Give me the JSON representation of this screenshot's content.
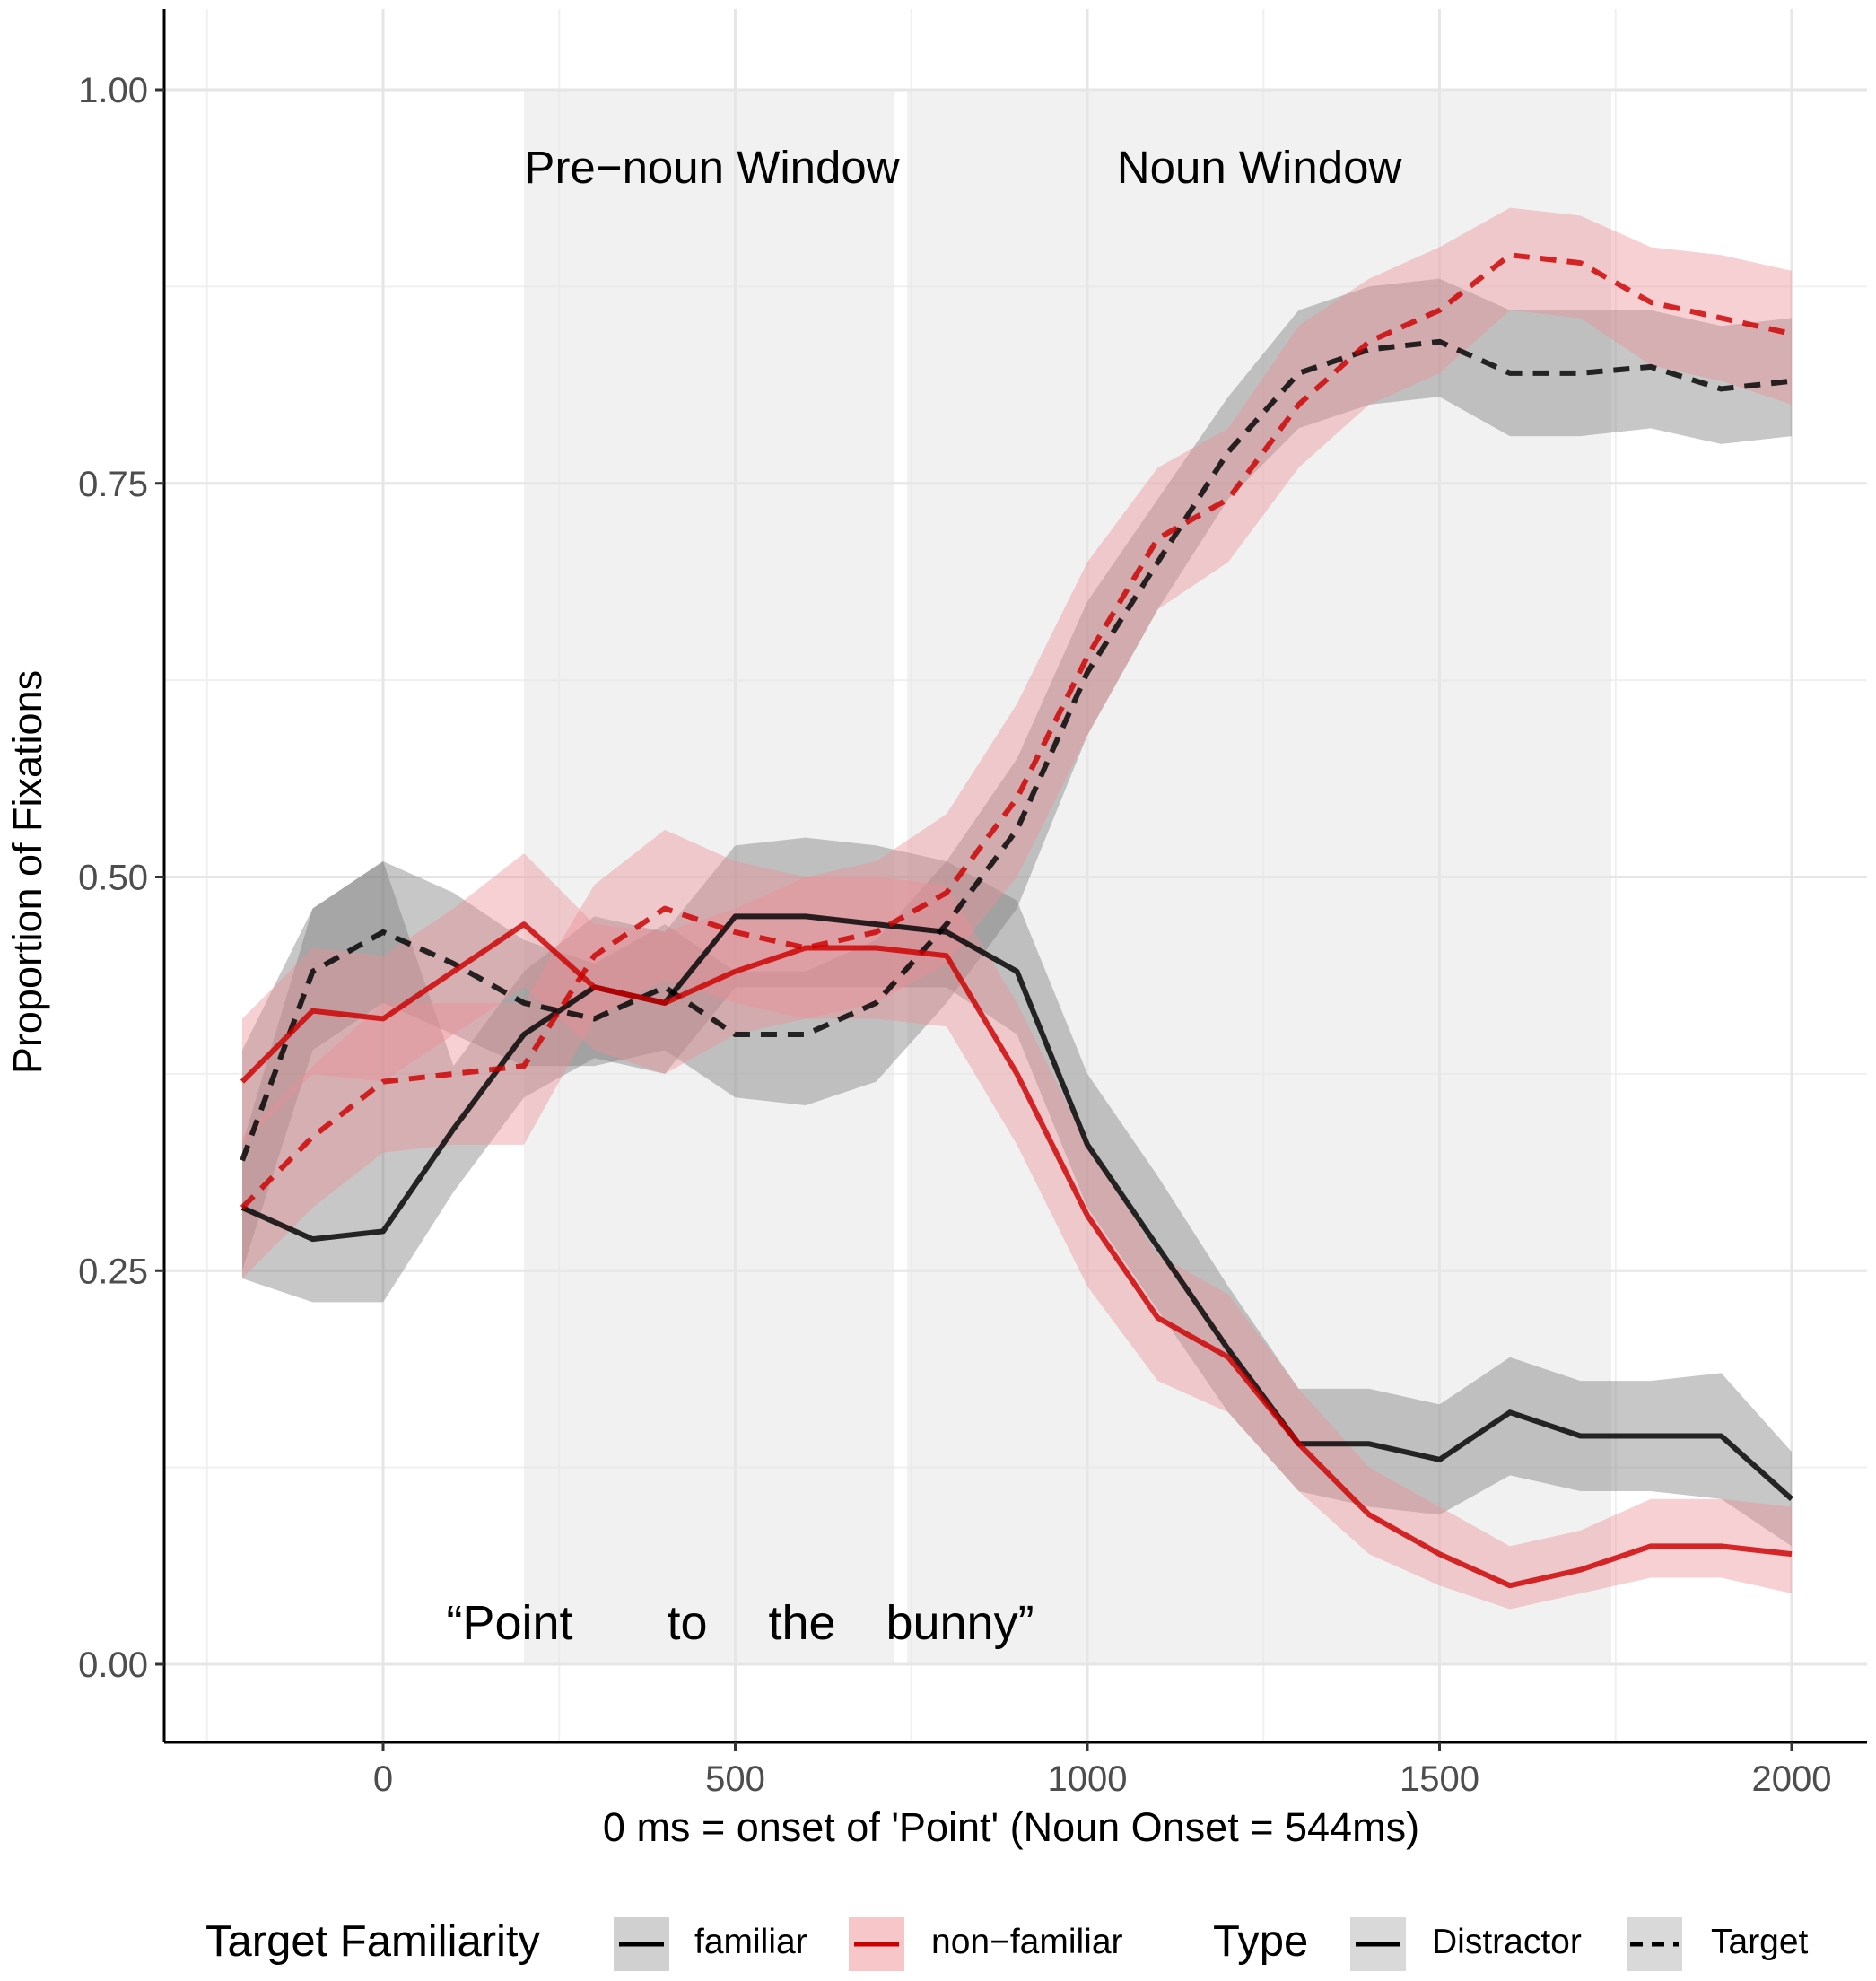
{
  "chart_data": {
    "type": "line",
    "title": "",
    "xlabel": "0 ms = onset of 'Point' (Noun Onset = 544ms)",
    "ylabel": "Proportion of Fixations",
    "xlim": [
      -300,
      2110
    ],
    "ylim": [
      -0.05,
      1.05
    ],
    "x_ticks": [
      0,
      500,
      1000,
      1500,
      2000
    ],
    "x_tick_labels": [
      "0",
      "500",
      "1000",
      "1500",
      "2000"
    ],
    "y_ticks": [
      0,
      0.25,
      0.5,
      0.75,
      1.0
    ],
    "y_tick_labels": [
      "0.00",
      "0.25",
      "0.50",
      "0.75",
      "1.00"
    ],
    "grid": true,
    "windows": [
      {
        "label": "Pre−noun Window",
        "start": 200,
        "end": 744
      },
      {
        "label": "Noun Window",
        "start": 744,
        "end": 1744
      }
    ],
    "utterance": {
      "words": [
        "“Point",
        "to",
        "the",
        "bunny”"
      ]
    },
    "x": [
      -200,
      -100,
      0,
      100,
      200,
      300,
      400,
      500,
      600,
      700,
      800,
      900,
      1000,
      1100,
      1200,
      1300,
      1400,
      1500,
      1600,
      1700,
      1800,
      1900,
      2000
    ],
    "series": [
      {
        "name": "familiar – Target",
        "familiarity": "familiar",
        "type": "Target",
        "color": "#000000",
        "dash": "dashed",
        "values": [
          0.32,
          0.44,
          0.465,
          0.445,
          0.42,
          0.41,
          0.43,
          0.4,
          0.4,
          0.42,
          0.47,
          0.53,
          0.63,
          0.7,
          0.77,
          0.82,
          0.835,
          0.84,
          0.82,
          0.82,
          0.824,
          0.81,
          0.815
        ],
        "lower": [
          0.25,
          0.39,
          0.42,
          0.4,
          0.38,
          0.38,
          0.39,
          0.36,
          0.355,
          0.37,
          0.42,
          0.48,
          0.59,
          0.67,
          0.74,
          0.785,
          0.8,
          0.805,
          0.78,
          0.78,
          0.785,
          0.775,
          0.78
        ],
        "upper": [
          0.39,
          0.48,
          0.51,
          0.49,
          0.46,
          0.445,
          0.47,
          0.44,
          0.44,
          0.46,
          0.51,
          0.575,
          0.675,
          0.74,
          0.805,
          0.86,
          0.875,
          0.88,
          0.86,
          0.86,
          0.86,
          0.85,
          0.855
        ]
      },
      {
        "name": "familiar – Distractor",
        "familiarity": "familiar",
        "type": "Distractor",
        "color": "#000000",
        "dash": "solid",
        "values": [
          0.29,
          0.27,
          0.275,
          0.34,
          0.4,
          0.43,
          0.42,
          0.475,
          0.475,
          0.47,
          0.465,
          0.44,
          0.33,
          0.265,
          0.2,
          0.14,
          0.14,
          0.13,
          0.16,
          0.145,
          0.145,
          0.145,
          0.105
        ],
        "lower": [
          0.245,
          0.23,
          0.23,
          0.3,
          0.36,
          0.385,
          0.375,
          0.43,
          0.43,
          0.43,
          0.43,
          0.4,
          0.29,
          0.225,
          0.16,
          0.11,
          0.1,
          0.095,
          0.12,
          0.11,
          0.11,
          0.105,
          0.075
        ],
        "upper": [
          0.33,
          0.48,
          0.51,
          0.38,
          0.44,
          0.475,
          0.465,
          0.52,
          0.525,
          0.52,
          0.51,
          0.485,
          0.375,
          0.31,
          0.24,
          0.175,
          0.175,
          0.165,
          0.195,
          0.18,
          0.18,
          0.185,
          0.135
        ]
      },
      {
        "name": "non−familiar – Target",
        "familiarity": "non−familiar",
        "type": "Target",
        "color": "#cc0000",
        "dash": "dashed",
        "values": [
          0.29,
          0.335,
          0.37,
          0.375,
          0.38,
          0.45,
          0.48,
          0.465,
          0.455,
          0.465,
          0.49,
          0.55,
          0.64,
          0.715,
          0.74,
          0.8,
          0.84,
          0.86,
          0.895,
          0.89,
          0.865,
          0.855,
          0.845
        ],
        "lower": [
          0.245,
          0.29,
          0.325,
          0.33,
          0.33,
          0.41,
          0.435,
          0.42,
          0.41,
          0.42,
          0.445,
          0.5,
          0.59,
          0.67,
          0.7,
          0.76,
          0.8,
          0.82,
          0.86,
          0.855,
          0.825,
          0.815,
          0.8
        ],
        "upper": [
          0.335,
          0.38,
          0.42,
          0.42,
          0.42,
          0.495,
          0.53,
          0.51,
          0.5,
          0.51,
          0.54,
          0.61,
          0.7,
          0.76,
          0.785,
          0.85,
          0.88,
          0.9,
          0.925,
          0.92,
          0.9,
          0.895,
          0.885
        ]
      },
      {
        "name": "non−familiar – Distractor",
        "familiarity": "non−familiar",
        "type": "Distractor",
        "color": "#cc0000",
        "dash": "solid",
        "values": [
          0.37,
          0.415,
          0.41,
          0.44,
          0.47,
          0.43,
          0.42,
          0.44,
          0.455,
          0.455,
          0.45,
          0.375,
          0.285,
          0.22,
          0.195,
          0.14,
          0.095,
          0.07,
          0.05,
          0.06,
          0.075,
          0.075,
          0.07
        ],
        "lower": [
          0.33,
          0.375,
          0.37,
          0.4,
          0.43,
          0.39,
          0.375,
          0.4,
          0.41,
          0.41,
          0.405,
          0.33,
          0.24,
          0.18,
          0.16,
          0.11,
          0.07,
          0.05,
          0.035,
          0.045,
          0.055,
          0.055,
          0.045
        ],
        "upper": [
          0.41,
          0.455,
          0.45,
          0.48,
          0.515,
          0.47,
          0.465,
          0.48,
          0.5,
          0.5,
          0.495,
          0.42,
          0.33,
          0.26,
          0.235,
          0.175,
          0.125,
          0.1,
          0.075,
          0.085,
          0.105,
          0.105,
          0.1
        ]
      }
    ],
    "legend": {
      "position": "bottom",
      "familiarity_title": "Target Familiarity",
      "familiarity_items": [
        {
          "label": "familiar",
          "color": "#000000"
        },
        {
          "label": "non−familiar",
          "color": "#cc0000"
        }
      ],
      "type_title": "Type",
      "type_items": [
        {
          "label": "Distractor",
          "dash": "solid"
        },
        {
          "label": "Target",
          "dash": "dashed"
        }
      ]
    }
  }
}
